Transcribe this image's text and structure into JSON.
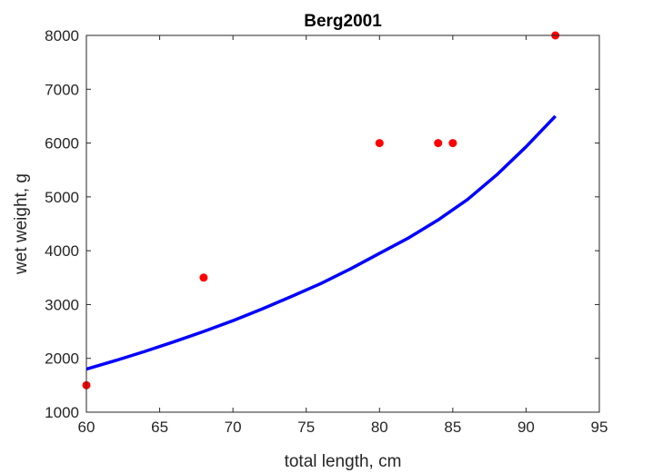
{
  "chart_data": {
    "type": "scatter",
    "title": "Berg2001",
    "xlabel": "total length, cm",
    "ylabel": "wet weight, g",
    "xlim": [
      60,
      95
    ],
    "ylim": [
      1000,
      8000
    ],
    "xticks": [
      "60",
      "65",
      "70",
      "75",
      "80",
      "85",
      "90",
      "95"
    ],
    "yticks": [
      "1000",
      "2000",
      "3000",
      "4000",
      "5000",
      "6000",
      "7000",
      "8000"
    ],
    "grid": false,
    "legend": "none",
    "series": [
      {
        "kind": "scatter",
        "color": "#ff0000",
        "x": [
          60,
          68,
          80,
          84,
          85,
          92
        ],
        "y": [
          1500,
          3500,
          6000,
          6000,
          6000,
          8000
        ]
      },
      {
        "kind": "line",
        "color": "#0000ff",
        "x": [
          60,
          62,
          64,
          66,
          68,
          70,
          72,
          74,
          76,
          78,
          80,
          82,
          84,
          86,
          88,
          90,
          92
        ],
        "y": [
          1800,
          1960,
          2130,
          2310,
          2500,
          2700,
          2920,
          3150,
          3390,
          3660,
          3950,
          4240,
          4570,
          4950,
          5410,
          5930,
          6500
        ]
      }
    ]
  }
}
